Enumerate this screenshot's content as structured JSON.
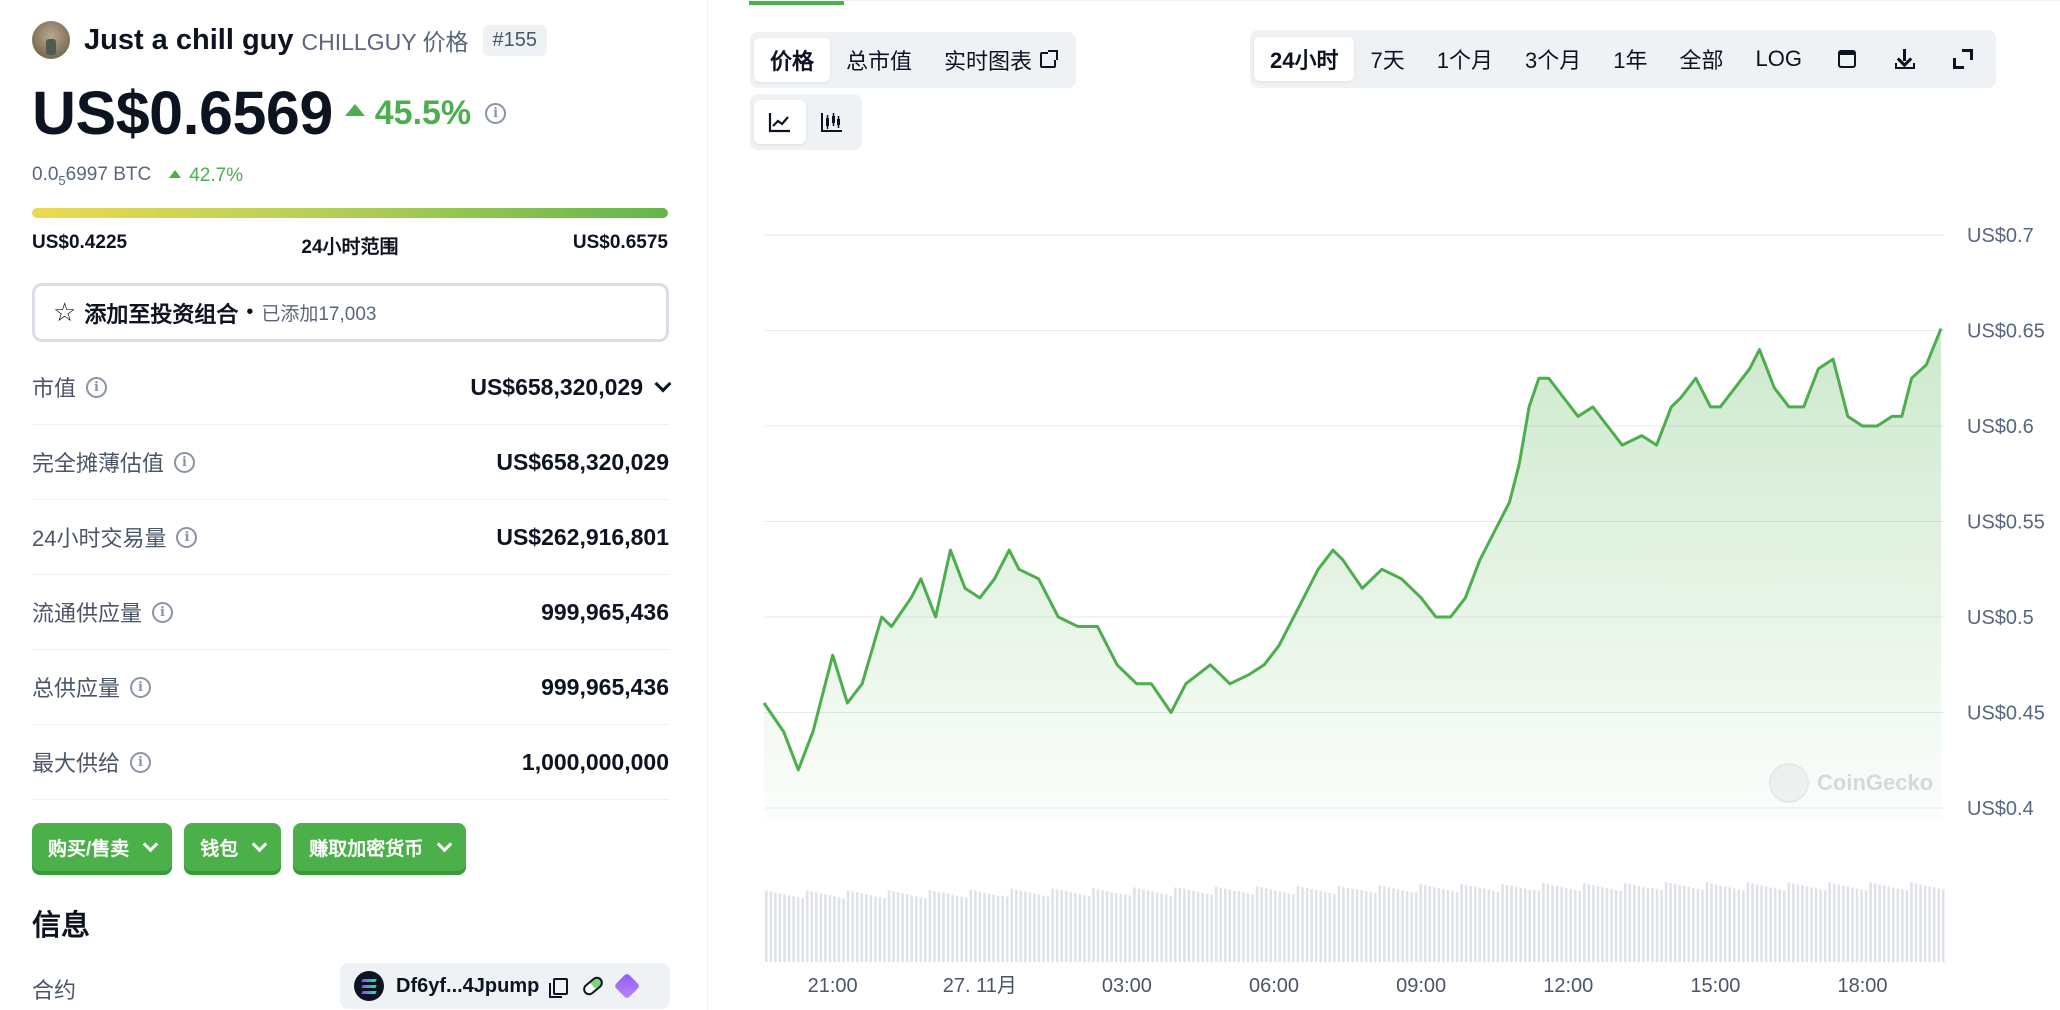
{
  "coin": {
    "name": "Just a chill guy",
    "subtitle": "CHILLGUY 价格",
    "rank": "#155",
    "price": "US$0.6569",
    "price_change": "45.5%",
    "btc_prefix": "0.0",
    "btc_sub": "5",
    "btc_rest": "6997 BTC",
    "btc_change": "42.7%"
  },
  "range": {
    "low": "US$0.4225",
    "label": "24小时范围",
    "high": "US$0.6575"
  },
  "portfolio": {
    "label": "添加至投资组合",
    "dot": "•",
    "count": "已添加17,003"
  },
  "stats": [
    {
      "label": "市值",
      "value": "US$658,320,029"
    },
    {
      "label": "完全摊薄估值",
      "value": "US$658,320,029"
    },
    {
      "label": "24小时交易量",
      "value": "US$262,916,801"
    },
    {
      "label": "流通供应量",
      "value": "999,965,436"
    },
    {
      "label": "总供应量",
      "value": "999,965,436"
    },
    {
      "label": "最大供给",
      "value": "1,000,000,000"
    }
  ],
  "actions": {
    "buy_sell": "购买/售卖",
    "wallet": "钱包",
    "earn": "赚取加密货币"
  },
  "info": {
    "title": "信息",
    "contract_label": "合约",
    "contract_address": "Df6yf...4Jpump"
  },
  "chart_tabs": {
    "price": "价格",
    "market_cap": "总市值",
    "live_chart": "实时图表"
  },
  "time_ranges": [
    "24小时",
    "7天",
    "1个月",
    "3个月",
    "1年",
    "全部",
    "LOG"
  ],
  "watermark": "CoinGecko",
  "colors": {
    "accent_green": "#4cae4c",
    "chart_line": "#4cae4c",
    "range_start": "#ecd954",
    "range_end": "#62b64c"
  },
  "chart_data": {
    "type": "area",
    "title": "",
    "xlabel": "",
    "ylabel": "",
    "ylim": [
      0.4,
      0.7
    ],
    "y_ticks": [
      0.4,
      0.45,
      0.5,
      0.55,
      0.6,
      0.65,
      0.7
    ],
    "y_tick_labels": [
      "US$0.4",
      "US$0.45",
      "US$0.5",
      "US$0.55",
      "US$0.6",
      "US$0.65",
      "US$0.7"
    ],
    "x_tick_labels": [
      "21:00",
      "27. 11月",
      "03:00",
      "06:00",
      "09:00",
      "12:00",
      "15:00",
      "18:00"
    ],
    "x_tick_hours": [
      21,
      24,
      27,
      30,
      33,
      36,
      39,
      42
    ],
    "x_range_hours": [
      19.6,
      43.6
    ],
    "series": [
      {
        "values_hours": [
          19.6,
          20.0,
          20.3,
          20.6,
          21.0,
          21.3,
          21.6,
          22.0,
          22.2,
          22.6,
          22.8,
          23.1,
          23.4,
          23.7,
          24.0,
          24.3,
          24.6,
          24.8,
          25.2,
          25.6,
          26.0,
          26.4,
          26.8,
          27.2,
          27.5,
          27.9,
          28.2,
          28.7,
          29.1,
          29.5,
          29.8,
          30.1,
          30.5,
          30.9,
          31.2,
          31.4,
          31.8,
          32.2,
          32.6,
          33.0,
          33.3,
          33.6,
          33.9,
          34.2,
          34.5,
          34.8,
          35.0,
          35.2,
          35.4,
          35.6,
          35.9,
          36.2,
          36.5,
          36.8,
          37.1,
          37.5,
          37.8,
          38.1,
          38.3,
          38.6,
          38.9,
          39.1,
          39.4,
          39.7,
          39.9,
          40.2,
          40.5,
          40.8,
          41.1,
          41.4,
          41.7,
          42.0,
          42.3,
          42.6,
          42.8,
          43.0,
          43.3,
          43.6
        ],
        "values": [
          0.455,
          0.44,
          0.42,
          0.44,
          0.48,
          0.455,
          0.465,
          0.5,
          0.495,
          0.51,
          0.52,
          0.5,
          0.535,
          0.515,
          0.51,
          0.52,
          0.535,
          0.525,
          0.52,
          0.5,
          0.495,
          0.495,
          0.475,
          0.465,
          0.465,
          0.45,
          0.465,
          0.475,
          0.465,
          0.47,
          0.475,
          0.485,
          0.505,
          0.525,
          0.535,
          0.53,
          0.515,
          0.525,
          0.52,
          0.51,
          0.5,
          0.5,
          0.51,
          0.53,
          0.545,
          0.56,
          0.58,
          0.61,
          0.625,
          0.625,
          0.615,
          0.605,
          0.61,
          0.6,
          0.59,
          0.595,
          0.59,
          0.61,
          0.615,
          0.625,
          0.61,
          0.61,
          0.62,
          0.63,
          0.64,
          0.62,
          0.61,
          0.61,
          0.63,
          0.635,
          0.605,
          0.6,
          0.6,
          0.605,
          0.605,
          0.625,
          0.632,
          0.651
        ]
      }
    ],
    "volume_series": {
      "description_values": [
        0.62,
        0.62,
        0.62,
        0.65,
        0.7,
        0.72,
        0.75,
        0.78,
        0.8,
        0.82,
        0.85,
        0.9,
        0.92,
        0.95,
        0.95,
        1.0,
        0.98,
        0.98,
        0.98,
        0.98
      ]
    }
  }
}
